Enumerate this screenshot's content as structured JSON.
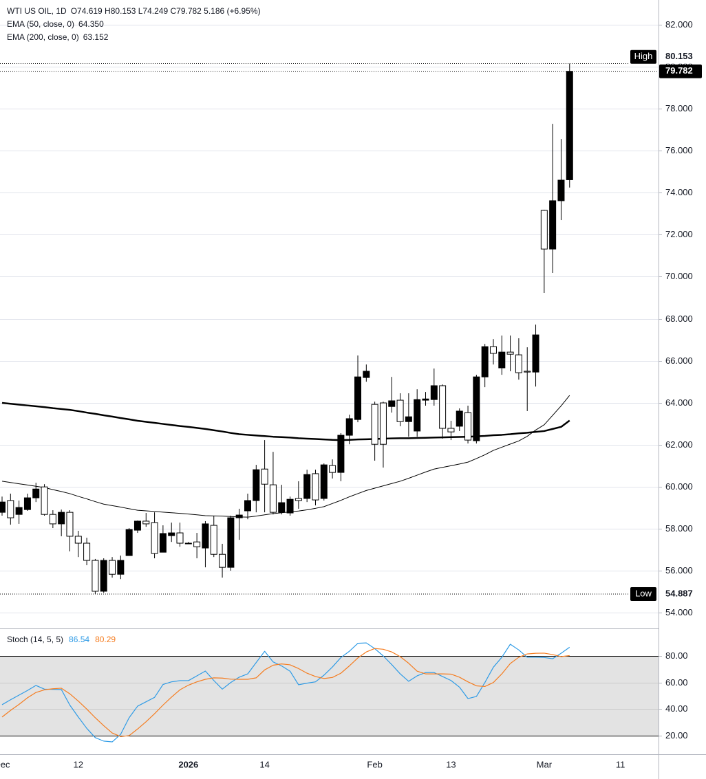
{
  "chart_data": [
    {
      "type": "candlestick",
      "title": "WTI US OIL, 1D",
      "readout": "O74.619 H80.153 L74.249 C79.782 5.186 (+6.95%)",
      "categories": [
        "Dec",
        null,
        null,
        null,
        null,
        null,
        null,
        null,
        null,
        "12",
        null,
        null,
        null,
        null,
        null,
        null,
        null,
        null,
        null,
        null,
        null,
        null,
        "2026",
        null,
        null,
        null,
        null,
        null,
        null,
        null,
        null,
        "14",
        null,
        null,
        null,
        null,
        null,
        null,
        null,
        null,
        null,
        null,
        null,
        null,
        "Feb",
        null,
        null,
        null,
        null,
        null,
        null,
        null,
        null,
        "13",
        null,
        null,
        null,
        null,
        null,
        null,
        null,
        null,
        null,
        null,
        "Mar",
        null,
        null,
        null,
        null,
        null,
        null,
        null,
        null,
        "11"
      ],
      "open": [
        58.78,
        59.34,
        58.68,
        58.91,
        59.47,
        59.99,
        58.68,
        58.23,
        58.78,
        57.64,
        57.31,
        56.49,
        55.02,
        56.49,
        55.83,
        56.72,
        57.93,
        58.36,
        58.29,
        56.88,
        57.67,
        57.8,
        57.31,
        57.37,
        57.08,
        58.16,
        56.78,
        56.16,
        58.52,
        58.85,
        59.34,
        60.84,
        60.09,
        58.78,
        58.75,
        59.44,
        59.44,
        60.62,
        59.44,
        61.01,
        60.68,
        62.45,
        63.2,
        65.2,
        63.92,
        63.99,
        63.82,
        64.12,
        63.1,
        62.65,
        64.12,
        64.15,
        64.81,
        62.78,
        62.88,
        63.53,
        62.19,
        65.23,
        66.67,
        65.66,
        66.41,
        66.28,
        65.5,
        65.46,
        73.16,
        71.32,
        73.62,
        74.619,
        null,
        null,
        null,
        null,
        null,
        null
      ],
      "high": [
        59.53,
        59.67,
        59.34,
        59.67,
        60.19,
        60.12,
        58.88,
        58.91,
        58.88,
        57.9,
        57.57,
        56.56,
        56.59,
        56.65,
        56.72,
        58.03,
        58.39,
        58.75,
        58.78,
        58.16,
        58.29,
        58.29,
        57.37,
        57.8,
        58.36,
        58.62,
        57.28,
        58.62,
        58.95,
        59.67,
        61.04,
        62.22,
        61.66,
        60.09,
        59.53,
        60.26,
        60.81,
        60.81,
        61.11,
        61.3,
        62.55,
        63.43,
        66.25,
        65.82,
        64.05,
        64.05,
        65.23,
        64.45,
        64.45,
        64.64,
        64.51,
        65.63,
        64.87,
        63.14,
        63.73,
        63.86,
        65.33,
        66.8,
        67.03,
        67.2,
        67.2,
        67.07,
        66.64,
        67.72,
        73.19,
        77.28,
        76.56,
        80.153,
        null,
        null,
        null,
        null,
        null,
        null
      ],
      "low": [
        58.62,
        58.19,
        58.23,
        58.85,
        59.27,
        58.62,
        58.03,
        57.64,
        56.92,
        56.65,
        56.26,
        54.887,
        54.95,
        55.67,
        55.6,
        56.72,
        57.8,
        58.09,
        56.59,
        56.88,
        57.37,
        57.14,
        57.28,
        56.59,
        56.16,
        56.65,
        55.67,
        56.0,
        57.47,
        58.45,
        58.78,
        58.78,
        58.68,
        58.68,
        58.62,
        58.95,
        59.27,
        59.11,
        59.34,
        60.39,
        60.26,
        62.02,
        63.07,
        65.0,
        61.24,
        60.91,
        63.53,
        62.88,
        62.38,
        62.38,
        63.86,
        63.86,
        62.29,
        62.22,
        62.65,
        62.06,
        62.06,
        64.74,
        65.82,
        65.33,
        65.5,
        65.1,
        63.6,
        64.77,
        69.23,
        70.18,
        72.7,
        74.249,
        null,
        null,
        null,
        null,
        null,
        null
      ],
      "close": [
        59.27,
        58.52,
        59.01,
        59.47,
        59.89,
        58.68,
        58.23,
        58.78,
        57.64,
        57.31,
        56.49,
        55.02,
        56.49,
        55.83,
        56.49,
        57.96,
        58.36,
        58.23,
        56.82,
        57.77,
        57.8,
        57.31,
        57.28,
        57.14,
        58.23,
        56.78,
        56.16,
        58.52,
        58.65,
        59.34,
        60.81,
        60.12,
        58.78,
        59.24,
        59.4,
        59.34,
        60.58,
        59.37,
        61.04,
        60.68,
        62.45,
        63.24,
        65.23,
        65.5,
        62.02,
        62.02,
        64.09,
        63.1,
        63.33,
        64.15,
        64.18,
        64.81,
        62.78,
        62.61,
        63.6,
        62.22,
        65.23,
        66.67,
        66.35,
        66.41,
        66.31,
        65.43,
        65.46,
        67.23,
        71.32,
        73.62,
        74.6,
        79.782,
        null,
        null,
        null,
        null,
        null,
        null
      ],
      "up_color": "#000000",
      "down_color": "#ffffff",
      "outline_color": "#000000",
      "overlays": [
        {
          "name": "EMA (50, close, 0)",
          "legend_value": "64.350",
          "color": "#000000",
          "line_width": 1,
          "values": [
            60.26,
            60.2,
            60.14,
            60.08,
            60.02,
            59.96,
            59.86,
            59.77,
            59.67,
            59.54,
            59.42,
            59.29,
            59.17,
            59.1,
            59.03,
            58.95,
            58.88,
            58.85,
            58.82,
            58.79,
            58.76,
            58.73,
            58.7,
            58.66,
            58.62,
            58.61,
            58.6,
            58.58,
            58.56,
            58.55,
            58.6,
            58.66,
            58.72,
            58.76,
            58.8,
            58.84,
            58.9,
            58.97,
            59.05,
            59.2,
            59.35,
            59.52,
            59.67,
            59.82,
            59.93,
            60.04,
            60.15,
            60.26,
            60.4,
            60.55,
            60.7,
            60.84,
            60.92,
            61.0,
            61.08,
            61.17,
            61.34,
            61.52,
            61.73,
            61.88,
            62.03,
            62.18,
            62.4,
            62.7,
            62.95,
            63.4,
            63.85,
            64.35,
            null,
            null,
            null,
            null,
            null,
            null
          ]
        },
        {
          "name": "EMA (200, close, 0)",
          "legend_value": "63.152",
          "color": "#000000",
          "line_width": 2.5,
          "values": [
            63.99,
            63.95,
            63.91,
            63.87,
            63.83,
            63.79,
            63.74,
            63.7,
            63.66,
            63.6,
            63.53,
            63.47,
            63.4,
            63.34,
            63.27,
            63.21,
            63.14,
            63.09,
            63.04,
            62.99,
            62.94,
            62.89,
            62.85,
            62.8,
            62.75,
            62.69,
            62.63,
            62.56,
            62.5,
            62.47,
            62.44,
            62.41,
            62.38,
            62.36,
            62.34,
            62.31,
            62.29,
            62.27,
            62.25,
            62.23,
            62.22,
            62.23,
            62.25,
            62.26,
            62.27,
            62.29,
            62.3,
            62.31,
            62.31,
            62.32,
            62.33,
            62.34,
            62.35,
            62.36,
            62.37,
            62.38,
            62.4,
            62.42,
            62.45,
            62.47,
            62.5,
            62.54,
            62.57,
            62.61,
            62.65,
            62.75,
            62.85,
            63.152,
            null,
            null,
            null,
            null,
            null,
            null
          ]
        }
      ],
      "ylim": [
        53.25,
        83.18
      ],
      "yticks": [
        {
          "value": 54,
          "label": "54.000"
        },
        {
          "value": 56,
          "label": "56.000"
        },
        {
          "value": 58,
          "label": "58.000"
        },
        {
          "value": 60,
          "label": "60.000"
        },
        {
          "value": 62,
          "label": "62.000"
        },
        {
          "value": 64,
          "label": "64.000"
        },
        {
          "value": 66,
          "label": "66.000"
        },
        {
          "value": 68,
          "label": "68.000"
        },
        {
          "value": 70,
          "label": "70.000"
        },
        {
          "value": 72,
          "label": "72.000"
        },
        {
          "value": 74,
          "label": "74.000"
        },
        {
          "value": 76,
          "label": "76.000"
        },
        {
          "value": 78,
          "label": "78.000"
        },
        {
          "value": 80,
          "label": "80.000"
        },
        {
          "value": 82,
          "label": "82.000"
        }
      ],
      "grid": true,
      "high_marker": {
        "label": "High",
        "value": 80.153
      },
      "low_marker": {
        "label": "Low",
        "value": 54.887
      },
      "last_price": 79.782
    },
    {
      "type": "line",
      "title": "Stoch (14, 5, 5)",
      "series": [
        {
          "color": "#2e9be6",
          "legend_value": "86.54",
          "values": [
            43.3,
            47,
            50.5,
            54,
            57.8,
            55,
            54.8,
            54.7,
            43,
            34,
            25.5,
            18.5,
            15.9,
            15.3,
            21,
            33.5,
            42.2,
            45.5,
            48.8,
            58.5,
            60.5,
            61.4,
            61.4,
            65,
            68.6,
            61.5,
            55,
            60,
            64,
            66.5,
            75,
            83.5,
            75.5,
            72.5,
            68.5,
            58.3,
            59.5,
            60.5,
            65.5,
            71.7,
            78.8,
            83.5,
            89.5,
            89.8,
            85.5,
            80,
            73.5,
            66.5,
            60.9,
            65,
            67.5,
            67.5,
            64.5,
            61.5,
            56.5,
            47.9,
            49.5,
            60,
            71.5,
            79,
            88.8,
            84.5,
            79,
            79,
            78.8,
            77.9,
            82,
            86.54,
            null,
            null,
            null,
            null,
            null,
            null
          ]
        },
        {
          "color": "#f57c1f",
          "legend_value": "80.29",
          "values": [
            34,
            39,
            43.5,
            48.5,
            52.5,
            54.5,
            55.3,
            55.7,
            51.5,
            46,
            40,
            33.5,
            27.5,
            22,
            19.3,
            20,
            25,
            30.5,
            36.5,
            43,
            49,
            54.5,
            58,
            60.5,
            62.4,
            63.5,
            63.3,
            62.5,
            62.4,
            62.4,
            63.5,
            69.5,
            73,
            74,
            73.3,
            70.5,
            67,
            64.5,
            63,
            63.8,
            67,
            72.5,
            78.5,
            83,
            85.6,
            85,
            83,
            79.5,
            74.5,
            68.5,
            66.5,
            66.5,
            66.5,
            66.3,
            64,
            60.5,
            57.5,
            57,
            60,
            66.5,
            74.3,
            79,
            81.5,
            82,
            82.1,
            81,
            79.5,
            80.29,
            null,
            null,
            null,
            null,
            null,
            null
          ]
        }
      ],
      "ylim": [
        6,
        100.7
      ],
      "yticks": [
        {
          "value": 20,
          "label": "20.00"
        },
        {
          "value": 40,
          "label": "40.00"
        },
        {
          "value": 60,
          "label": "60.00"
        },
        {
          "value": 80,
          "label": "80.00"
        }
      ],
      "band": [
        20,
        80
      ],
      "band_color": "#e3e3e3",
      "grid": true
    }
  ]
}
